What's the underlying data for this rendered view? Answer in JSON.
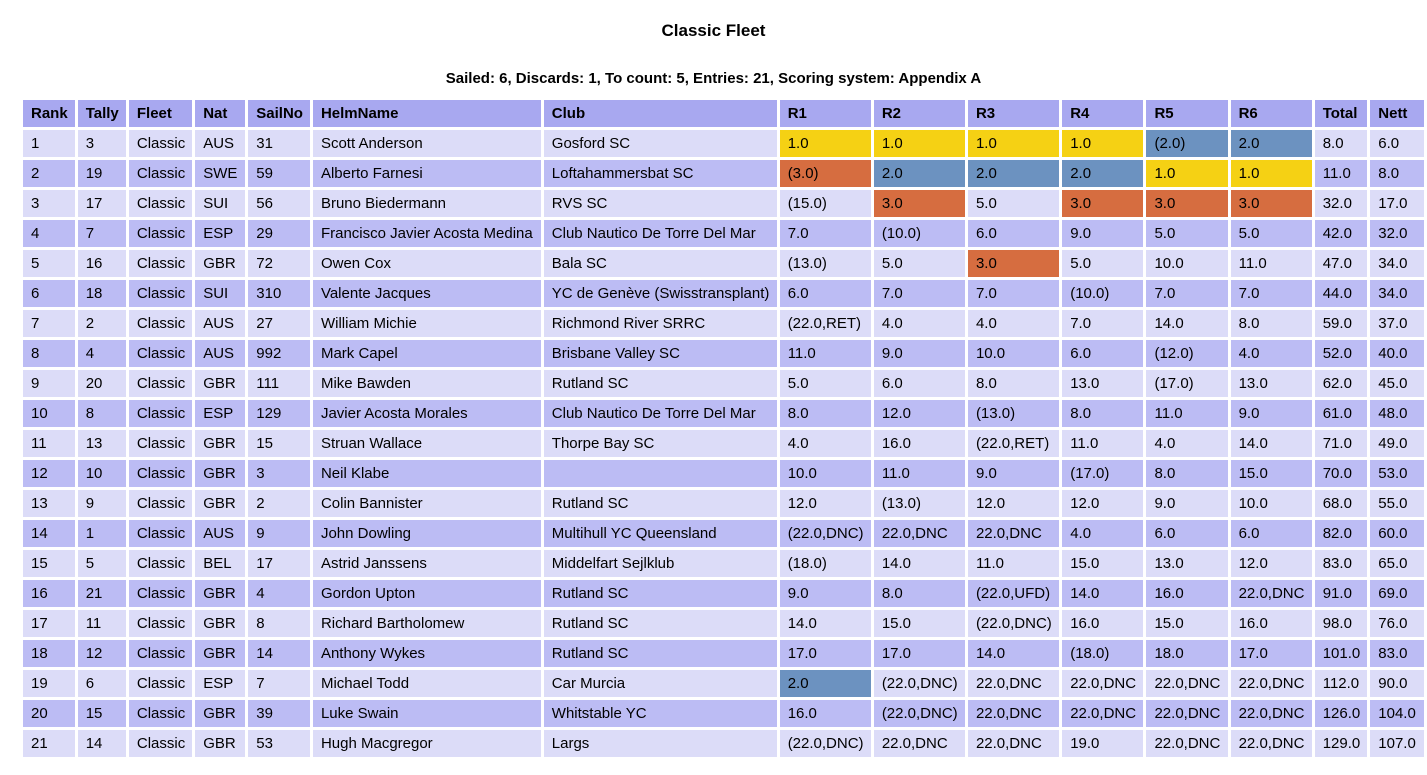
{
  "page": {
    "title": "Classic Fleet",
    "summary": "Sailed: 6, Discards: 1, To count: 5, Entries: 21, Scoring system: Appendix A"
  },
  "colors": {
    "header_bg": "#a8a8f0",
    "row_light": "#dcdcf8",
    "row_dark": "#bcbcf4",
    "first_place": "#f5d114",
    "second_place": "#6c92c0",
    "third_place": "#d66d40",
    "text": "#000000",
    "background": "#ffffff"
  },
  "table": {
    "columns": [
      "Rank",
      "Tally",
      "Fleet",
      "Nat",
      "SailNo",
      "HelmName",
      "Club",
      "R1",
      "R2",
      "R3",
      "R4",
      "R5",
      "R6",
      "Total",
      "Nett"
    ],
    "rows": [
      {
        "rank": "1",
        "tally": "3",
        "fleet": "Classic",
        "nat": "AUS",
        "sailno": "31",
        "helm": "Scott Anderson",
        "club": "Gosford SC",
        "races": [
          "1.0",
          "1.0",
          "1.0",
          "1.0",
          "(2.0)",
          "2.0"
        ],
        "race_highlights": [
          "first",
          "first",
          "first",
          "first",
          "second",
          "second"
        ],
        "total": "8.0",
        "nett": "6.0"
      },
      {
        "rank": "2",
        "tally": "19",
        "fleet": "Classic",
        "nat": "SWE",
        "sailno": "59",
        "helm": "Alberto Farnesi",
        "club": "Loftahammersbat SC",
        "races": [
          "(3.0)",
          "2.0",
          "2.0",
          "2.0",
          "1.0",
          "1.0"
        ],
        "race_highlights": [
          "third",
          "second",
          "second",
          "second",
          "first",
          "first"
        ],
        "total": "11.0",
        "nett": "8.0"
      },
      {
        "rank": "3",
        "tally": "17",
        "fleet": "Classic",
        "nat": "SUI",
        "sailno": "56",
        "helm": "Bruno Biedermann",
        "club": "RVS SC",
        "races": [
          "(15.0)",
          "3.0",
          "5.0",
          "3.0",
          "3.0",
          "3.0"
        ],
        "race_highlights": [
          null,
          "third",
          null,
          "third",
          "third",
          "third"
        ],
        "total": "32.0",
        "nett": "17.0"
      },
      {
        "rank": "4",
        "tally": "7",
        "fleet": "Classic",
        "nat": "ESP",
        "sailno": "29",
        "helm": "Francisco Javier Acosta Medina",
        "club": "Club Nautico De Torre Del Mar",
        "races": [
          "7.0",
          "(10.0)",
          "6.0",
          "9.0",
          "5.0",
          "5.0"
        ],
        "race_highlights": [
          null,
          null,
          null,
          null,
          null,
          null
        ],
        "total": "42.0",
        "nett": "32.0"
      },
      {
        "rank": "5",
        "tally": "16",
        "fleet": "Classic",
        "nat": "GBR",
        "sailno": "72",
        "helm": "Owen Cox",
        "club": "Bala SC",
        "races": [
          "(13.0)",
          "5.0",
          "3.0",
          "5.0",
          "10.0",
          "11.0"
        ],
        "race_highlights": [
          null,
          null,
          "third",
          null,
          null,
          null
        ],
        "total": "47.0",
        "nett": "34.0"
      },
      {
        "rank": "6",
        "tally": "18",
        "fleet": "Classic",
        "nat": "SUI",
        "sailno": "310",
        "helm": "Valente Jacques",
        "club": "YC de Genève (Swisstransplant)",
        "races": [
          "6.0",
          "7.0",
          "7.0",
          "(10.0)",
          "7.0",
          "7.0"
        ],
        "race_highlights": [
          null,
          null,
          null,
          null,
          null,
          null
        ],
        "total": "44.0",
        "nett": "34.0"
      },
      {
        "rank": "7",
        "tally": "2",
        "fleet": "Classic",
        "nat": "AUS",
        "sailno": "27",
        "helm": "William Michie",
        "club": "Richmond River SRRC",
        "races": [
          "(22.0,RET)",
          "4.0",
          "4.0",
          "7.0",
          "14.0",
          "8.0"
        ],
        "race_highlights": [
          null,
          null,
          null,
          null,
          null,
          null
        ],
        "total": "59.0",
        "nett": "37.0"
      },
      {
        "rank": "8",
        "tally": "4",
        "fleet": "Classic",
        "nat": "AUS",
        "sailno": "992",
        "helm": "Mark Capel",
        "club": "Brisbane Valley SC",
        "races": [
          "11.0",
          "9.0",
          "10.0",
          "6.0",
          "(12.0)",
          "4.0"
        ],
        "race_highlights": [
          null,
          null,
          null,
          null,
          null,
          null
        ],
        "total": "52.0",
        "nett": "40.0"
      },
      {
        "rank": "9",
        "tally": "20",
        "fleet": "Classic",
        "nat": "GBR",
        "sailno": "111",
        "helm": "Mike Bawden",
        "club": "Rutland SC",
        "races": [
          "5.0",
          "6.0",
          "8.0",
          "13.0",
          "(17.0)",
          "13.0"
        ],
        "race_highlights": [
          null,
          null,
          null,
          null,
          null,
          null
        ],
        "total": "62.0",
        "nett": "45.0"
      },
      {
        "rank": "10",
        "tally": "8",
        "fleet": "Classic",
        "nat": "ESP",
        "sailno": "129",
        "helm": "Javier Acosta Morales",
        "club": "Club Nautico De Torre Del Mar",
        "races": [
          "8.0",
          "12.0",
          "(13.0)",
          "8.0",
          "11.0",
          "9.0"
        ],
        "race_highlights": [
          null,
          null,
          null,
          null,
          null,
          null
        ],
        "total": "61.0",
        "nett": "48.0"
      },
      {
        "rank": "11",
        "tally": "13",
        "fleet": "Classic",
        "nat": "GBR",
        "sailno": "15",
        "helm": "Struan Wallace",
        "club": "Thorpe Bay SC",
        "races": [
          "4.0",
          "16.0",
          "(22.0,RET)",
          "11.0",
          "4.0",
          "14.0"
        ],
        "race_highlights": [
          null,
          null,
          null,
          null,
          null,
          null
        ],
        "total": "71.0",
        "nett": "49.0"
      },
      {
        "rank": "12",
        "tally": "10",
        "fleet": "Classic",
        "nat": "GBR",
        "sailno": "3",
        "helm": "Neil Klabe",
        "club": "",
        "races": [
          "10.0",
          "11.0",
          "9.0",
          "(17.0)",
          "8.0",
          "15.0"
        ],
        "race_highlights": [
          null,
          null,
          null,
          null,
          null,
          null
        ],
        "total": "70.0",
        "nett": "53.0"
      },
      {
        "rank": "13",
        "tally": "9",
        "fleet": "Classic",
        "nat": "GBR",
        "sailno": "2",
        "helm": "Colin Bannister",
        "club": "Rutland SC",
        "races": [
          "12.0",
          "(13.0)",
          "12.0",
          "12.0",
          "9.0",
          "10.0"
        ],
        "race_highlights": [
          null,
          null,
          null,
          null,
          null,
          null
        ],
        "total": "68.0",
        "nett": "55.0"
      },
      {
        "rank": "14",
        "tally": "1",
        "fleet": "Classic",
        "nat": "AUS",
        "sailno": "9",
        "helm": "John Dowling",
        "club": "Multihull YC Queensland",
        "races": [
          "(22.0,DNC)",
          "22.0,DNC",
          "22.0,DNC",
          "4.0",
          "6.0",
          "6.0"
        ],
        "race_highlights": [
          null,
          null,
          null,
          null,
          null,
          null
        ],
        "total": "82.0",
        "nett": "60.0"
      },
      {
        "rank": "15",
        "tally": "5",
        "fleet": "Classic",
        "nat": "BEL",
        "sailno": "17",
        "helm": "Astrid Janssens",
        "club": "Middelfart Sejlklub",
        "races": [
          "(18.0)",
          "14.0",
          "11.0",
          "15.0",
          "13.0",
          "12.0"
        ],
        "race_highlights": [
          null,
          null,
          null,
          null,
          null,
          null
        ],
        "total": "83.0",
        "nett": "65.0"
      },
      {
        "rank": "16",
        "tally": "21",
        "fleet": "Classic",
        "nat": "GBR",
        "sailno": "4",
        "helm": "Gordon Upton",
        "club": "Rutland SC",
        "races": [
          "9.0",
          "8.0",
          "(22.0,UFD)",
          "14.0",
          "16.0",
          "22.0,DNC"
        ],
        "race_highlights": [
          null,
          null,
          null,
          null,
          null,
          null
        ],
        "total": "91.0",
        "nett": "69.0"
      },
      {
        "rank": "17",
        "tally": "11",
        "fleet": "Classic",
        "nat": "GBR",
        "sailno": "8",
        "helm": "Richard Bartholomew",
        "club": "Rutland SC",
        "races": [
          "14.0",
          "15.0",
          "(22.0,DNC)",
          "16.0",
          "15.0",
          "16.0"
        ],
        "race_highlights": [
          null,
          null,
          null,
          null,
          null,
          null
        ],
        "total": "98.0",
        "nett": "76.0"
      },
      {
        "rank": "18",
        "tally": "12",
        "fleet": "Classic",
        "nat": "GBR",
        "sailno": "14",
        "helm": "Anthony Wykes",
        "club": "Rutland SC",
        "races": [
          "17.0",
          "17.0",
          "14.0",
          "(18.0)",
          "18.0",
          "17.0"
        ],
        "race_highlights": [
          null,
          null,
          null,
          null,
          null,
          null
        ],
        "total": "101.0",
        "nett": "83.0"
      },
      {
        "rank": "19",
        "tally": "6",
        "fleet": "Classic",
        "nat": "ESP",
        "sailno": "7",
        "helm": "Michael Todd",
        "club": "Car Murcia",
        "races": [
          "2.0",
          "(22.0,DNC)",
          "22.0,DNC",
          "22.0,DNC",
          "22.0,DNC",
          "22.0,DNC"
        ],
        "race_highlights": [
          "second",
          null,
          null,
          null,
          null,
          null
        ],
        "total": "112.0",
        "nett": "90.0"
      },
      {
        "rank": "20",
        "tally": "15",
        "fleet": "Classic",
        "nat": "GBR",
        "sailno": "39",
        "helm": "Luke Swain",
        "club": "Whitstable YC",
        "races": [
          "16.0",
          "(22.0,DNC)",
          "22.0,DNC",
          "22.0,DNC",
          "22.0,DNC",
          "22.0,DNC"
        ],
        "race_highlights": [
          null,
          null,
          null,
          null,
          null,
          null
        ],
        "total": "126.0",
        "nett": "104.0"
      },
      {
        "rank": "21",
        "tally": "14",
        "fleet": "Classic",
        "nat": "GBR",
        "sailno": "53",
        "helm": "Hugh Macgregor",
        "club": "Largs",
        "races": [
          "(22.0,DNC)",
          "22.0,DNC",
          "22.0,DNC",
          "19.0",
          "22.0,DNC",
          "22.0,DNC"
        ],
        "race_highlights": [
          null,
          null,
          null,
          null,
          null,
          null
        ],
        "total": "129.0",
        "nett": "107.0"
      }
    ]
  }
}
